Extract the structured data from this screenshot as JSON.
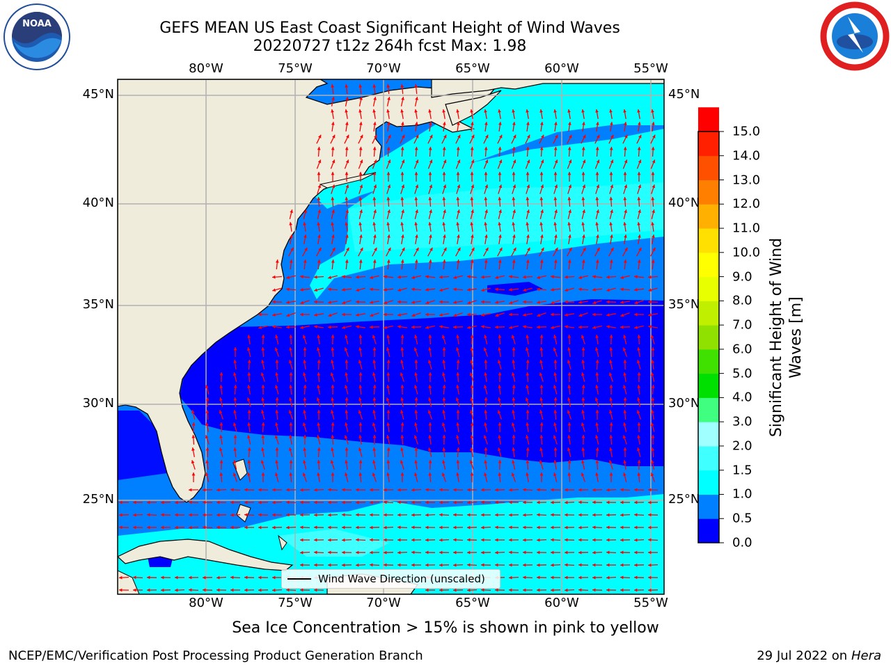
{
  "header": {
    "title_line1": "GEFS MEAN US East Coast Significant Height of Wind Waves",
    "title_line2": "20220727 t12z 264h fcst   Max: 1.98"
  },
  "logos": {
    "left": "NOAA",
    "right": "NATIONAL WEATHER SERVICE"
  },
  "map": {
    "lon_labels": [
      "80°W",
      "75°W",
      "70°W",
      "65°W",
      "60°W",
      "55°W"
    ],
    "lat_labels": [
      "45°N",
      "40°N",
      "35°N",
      "30°N",
      "25°N"
    ],
    "legend_label": "Wind Wave Direction (unscaled)",
    "land_color": "#efecdc",
    "arrow_color": "#ff0000",
    "grid_color": "#b0b0b0"
  },
  "colorbar": {
    "label": "Significant Height of Wind Waves [m]",
    "label_line1": "Significant Height of Wind",
    "label_line2": "Waves [m]",
    "ticks": [
      "15.0",
      "14.0",
      "13.0",
      "12.0",
      "11.0",
      "10.0",
      "9.0",
      "8.0",
      "7.0",
      "6.0",
      "5.0",
      "4.0",
      "3.0",
      "2.0",
      "1.5",
      "1.0",
      "0.5",
      "0.0"
    ],
    "colors": [
      "#0000ff",
      "#0080ff",
      "#00ffff",
      "#40ffff",
      "#a0ffff",
      "#40ff80",
      "#00e000",
      "#40e000",
      "#90e000",
      "#c0f000",
      "#e8ff00",
      "#ffff00",
      "#ffe000",
      "#ffb000",
      "#ff8000",
      "#ff5000",
      "#ff2000",
      "#ff0000"
    ]
  },
  "subtitle": "Sea Ice Concentration > 15% is shown in pink to yellow",
  "footer": {
    "left": "NCEP/EMC/Verification Post Processing Product Generation Branch",
    "right_date": "29 Jul 2022 on",
    "right_host": "Hera"
  }
}
